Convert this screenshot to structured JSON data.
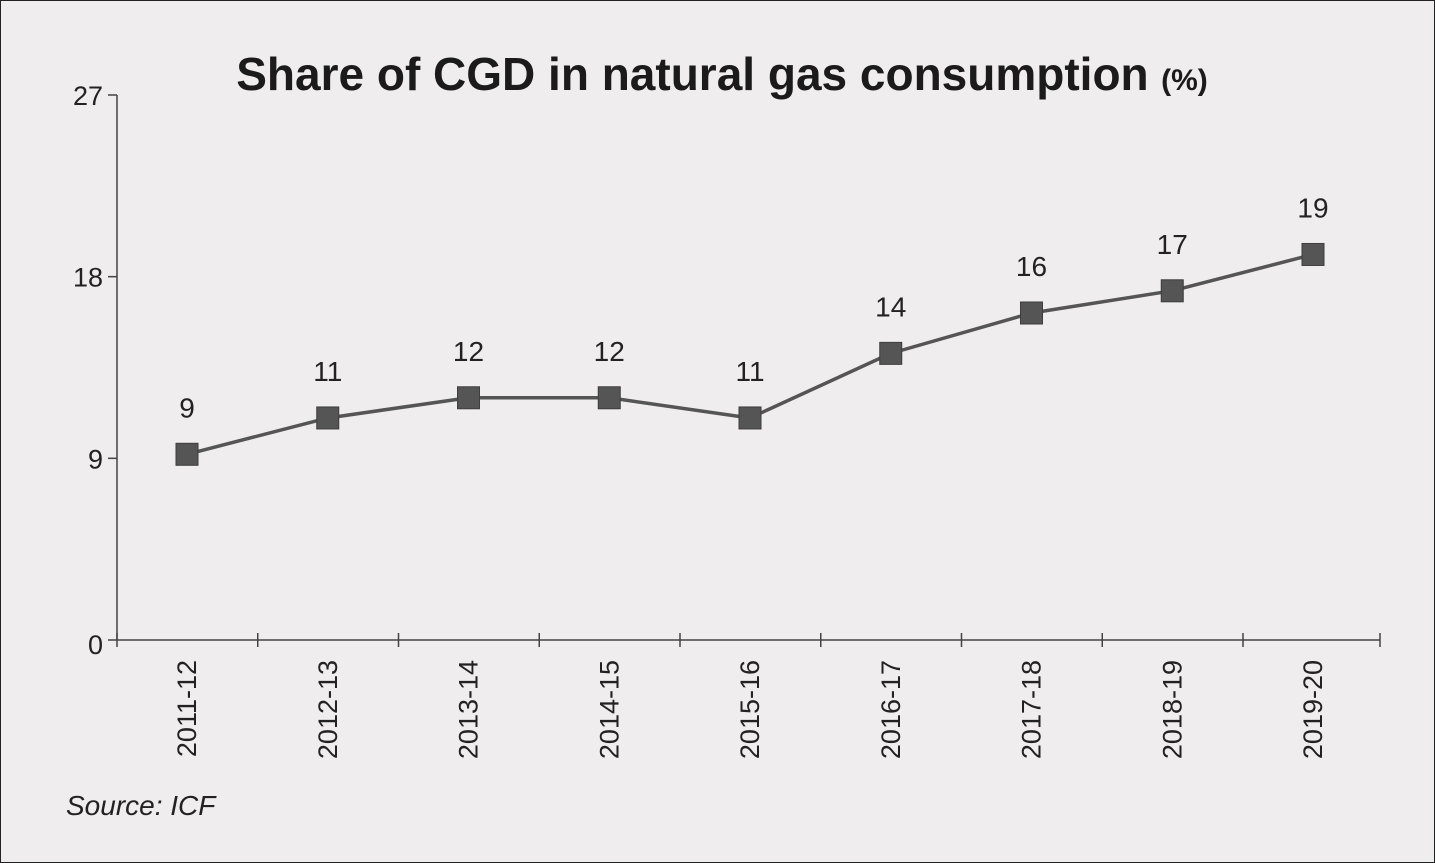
{
  "chart_data": {
    "type": "line",
    "title": "Share of CGD in natural gas consumption",
    "title_unit": "(%)",
    "categories": [
      "2011-12",
      "2012-13",
      "2013-14",
      "2014-15",
      "2015-16",
      "2016-17",
      "2017-18",
      "2018-19",
      "2019-20"
    ],
    "series": [
      {
        "values": [
          9.2,
          11.0,
          12.0,
          12.0,
          11.0,
          14.2,
          16.2,
          17.3,
          19.1
        ],
        "data_labels": [
          "9",
          "11",
          "12",
          "12",
          "11",
          "14",
          "16",
          "17",
          "19"
        ],
        "color": "#555555",
        "marker": "square"
      }
    ],
    "y_ticks": [
      0,
      9,
      18,
      27
    ],
    "ylim": [
      0,
      27
    ],
    "xlabel": "",
    "ylabel": "",
    "grid": false,
    "legend": "none"
  },
  "source": "Source: ICF"
}
